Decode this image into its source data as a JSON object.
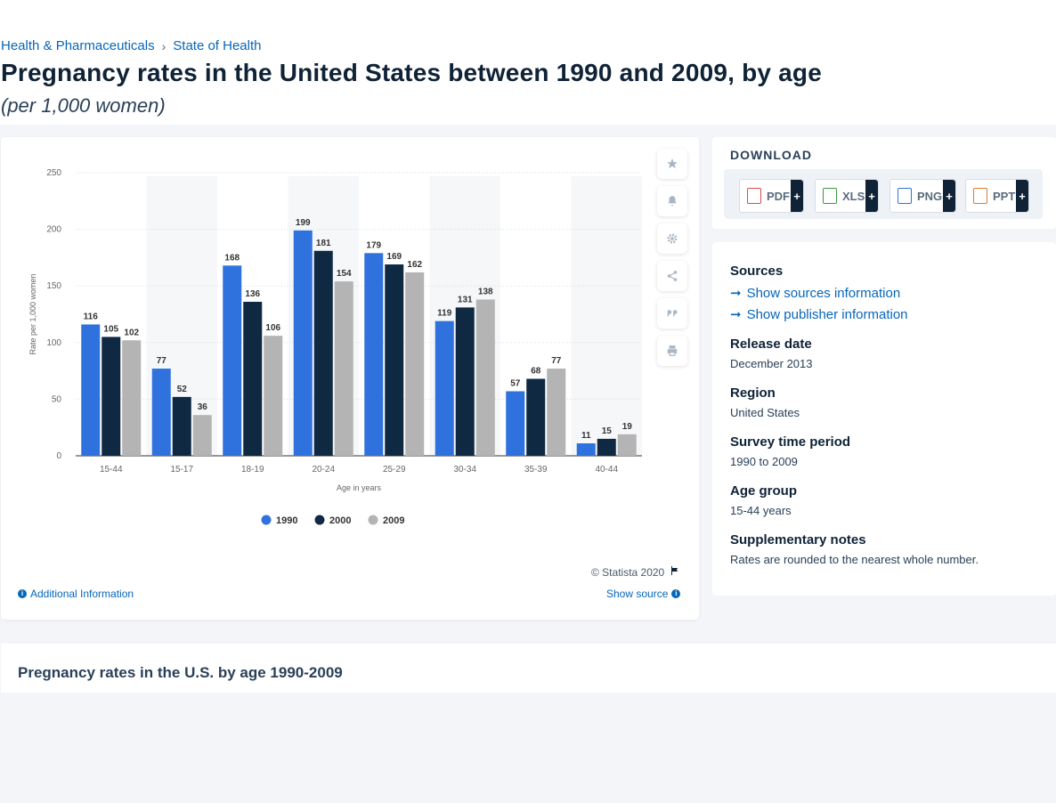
{
  "breadcrumb": {
    "item1": "Health & Pharmaceuticals",
    "sep": "›",
    "item2": "State of Health"
  },
  "title": "Pregnancy rates in the United States between 1990 and 2009, by age",
  "subtitle": "(per 1,000 women)",
  "tools": {
    "star_icon": "star-icon",
    "bell_icon": "bell-icon",
    "gear_icon": "gear-icon",
    "share_icon": "share-icon",
    "quote_icon": "quote-icon",
    "print_icon": "print-icon"
  },
  "footer": {
    "copyright": "© Statista 2020",
    "additional_info": "Additional Information",
    "show_source": "Show source"
  },
  "download": {
    "title": "DOWNLOAD",
    "pdf": "PDF",
    "xls": "XLS",
    "png": "PNG",
    "ppt": "PPT",
    "plus": "+"
  },
  "meta": {
    "sources_h": "Sources",
    "show_sources": "Show sources information",
    "show_publisher": "Show publisher information",
    "release_h": "Release date",
    "release_v": "December 2013",
    "region_h": "Region",
    "region_v": "United States",
    "period_h": "Survey time period",
    "period_v": "1990 to 2009",
    "age_h": "Age group",
    "age_v": "15-44 years",
    "notes_h": "Supplementary notes",
    "notes_v": "Rates are rounded to the nearest whole number."
  },
  "related": {
    "title": "Pregnancy rates in the U.S. by age 1990-2009"
  },
  "colors": {
    "s1990": "#2f72de",
    "s2000": "#0f2942",
    "s2009": "#b4b4b4",
    "link": "#0666b9"
  },
  "chart_data": {
    "type": "bar",
    "title": "",
    "xlabel": "Age in years",
    "ylabel": "Rate per 1,000 women",
    "ylim": [
      0,
      250
    ],
    "yticks": [
      0,
      50,
      100,
      150,
      200,
      250
    ],
    "grid": true,
    "legend": "bottom",
    "categories": [
      "15-44",
      "15-17",
      "18-19",
      "20-24",
      "25-29",
      "30-34",
      "35-39",
      "40-44"
    ],
    "series": [
      {
        "name": "1990",
        "values": [
          116,
          77,
          168,
          199,
          179,
          119,
          57,
          11
        ]
      },
      {
        "name": "2000",
        "values": [
          105,
          52,
          136,
          181,
          169,
          131,
          68,
          15
        ]
      },
      {
        "name": "2009",
        "values": [
          102,
          36,
          106,
          154,
          162,
          138,
          77,
          19
        ]
      }
    ]
  }
}
